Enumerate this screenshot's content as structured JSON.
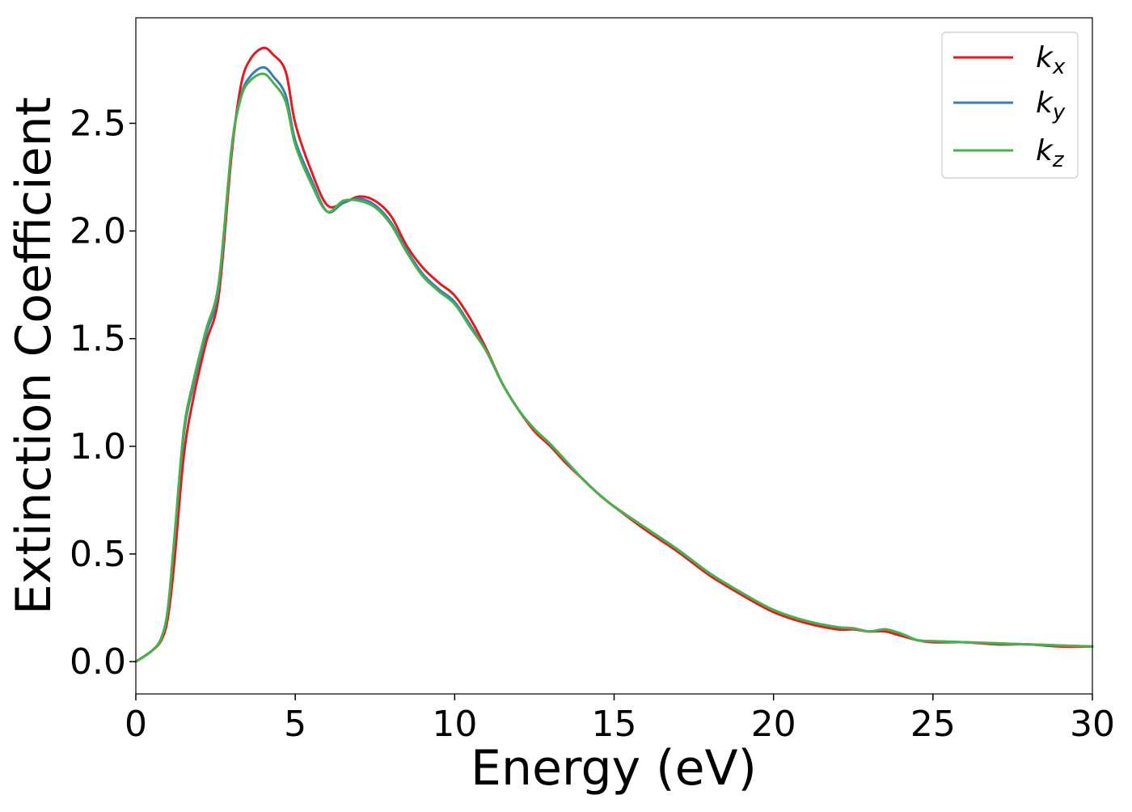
{
  "chart_data": {
    "type": "line",
    "title": "",
    "xlabel": "Energy (eV)",
    "ylabel": "Extinction Coefficient",
    "xlim": [
      0,
      30
    ],
    "ylim": [
      -0.15,
      2.99
    ],
    "xticks": [
      0,
      5,
      10,
      15,
      20,
      25,
      30
    ],
    "xtick_labels": [
      "0",
      "5",
      "10",
      "15",
      "20",
      "25",
      "30"
    ],
    "yticks": [
      0.0,
      0.5,
      1.0,
      1.5,
      2.0,
      2.5
    ],
    "ytick_labels": [
      "0.0",
      "0.5",
      "1.0",
      "1.5",
      "2.0",
      "2.5"
    ],
    "grid": false,
    "legend_position": "top-right",
    "series": [
      {
        "name": "k_x",
        "label_main": "k",
        "label_sub": "x",
        "color": "#e41a1c",
        "x": [
          0,
          0.5,
          0.8,
          1.0,
          1.2,
          1.5,
          1.8,
          2.2,
          2.6,
          3.0,
          3.3,
          3.6,
          4.0,
          4.3,
          4.7,
          5.0,
          5.5,
          6.0,
          6.5,
          7.0,
          7.5,
          8.0,
          8.5,
          9.0,
          9.5,
          10.0,
          10.5,
          11.0,
          11.5,
          12.0,
          12.5,
          13.0,
          13.5,
          14.0,
          14.5,
          15.0,
          16.0,
          17.0,
          18.0,
          19.0,
          20.0,
          21.0,
          22.0,
          22.5,
          23.0,
          23.5,
          24.0,
          24.5,
          25.0,
          26.0,
          27.0,
          28.0,
          29.0,
          30.0
        ],
        "y": [
          0.0,
          0.05,
          0.1,
          0.2,
          0.45,
          0.95,
          1.22,
          1.48,
          1.7,
          2.35,
          2.68,
          2.8,
          2.85,
          2.82,
          2.74,
          2.5,
          2.28,
          2.12,
          2.13,
          2.16,
          2.14,
          2.07,
          1.93,
          1.83,
          1.76,
          1.7,
          1.59,
          1.45,
          1.29,
          1.17,
          1.07,
          1.0,
          0.92,
          0.85,
          0.78,
          0.72,
          0.61,
          0.51,
          0.4,
          0.31,
          0.23,
          0.18,
          0.15,
          0.15,
          0.14,
          0.14,
          0.12,
          0.1,
          0.09,
          0.09,
          0.08,
          0.08,
          0.07,
          0.07
        ]
      },
      {
        "name": "k_y",
        "label_main": "k",
        "label_sub": "y",
        "color": "#377eb8",
        "x": [
          0,
          0.5,
          0.8,
          1.0,
          1.2,
          1.5,
          1.8,
          2.2,
          2.6,
          3.0,
          3.3,
          3.6,
          4.0,
          4.3,
          4.7,
          5.0,
          5.5,
          6.0,
          6.5,
          7.0,
          7.5,
          8.0,
          8.5,
          9.0,
          9.5,
          10.0,
          10.5,
          11.0,
          11.5,
          12.0,
          12.5,
          13.0,
          13.5,
          14.0,
          14.5,
          15.0,
          16.0,
          17.0,
          18.0,
          19.0,
          20.0,
          21.0,
          22.0,
          22.5,
          23.0,
          23.5,
          24.0,
          24.5,
          25.0,
          26.0,
          27.0,
          28.0,
          29.0,
          30.0
        ],
        "y": [
          0.0,
          0.05,
          0.11,
          0.24,
          0.55,
          1.05,
          1.28,
          1.52,
          1.74,
          2.38,
          2.63,
          2.72,
          2.76,
          2.72,
          2.63,
          2.42,
          2.24,
          2.09,
          2.13,
          2.15,
          2.12,
          2.04,
          1.91,
          1.8,
          1.73,
          1.67,
          1.56,
          1.44,
          1.29,
          1.17,
          1.08,
          1.01,
          0.93,
          0.85,
          0.78,
          0.72,
          0.62,
          0.52,
          0.41,
          0.32,
          0.24,
          0.19,
          0.16,
          0.155,
          0.14,
          0.15,
          0.13,
          0.1,
          0.095,
          0.09,
          0.085,
          0.08,
          0.075,
          0.07
        ]
      },
      {
        "name": "k_z",
        "label_main": "k",
        "label_sub": "z",
        "color": "#4daf4a",
        "x": [
          0,
          0.5,
          0.8,
          1.0,
          1.2,
          1.5,
          1.8,
          2.2,
          2.6,
          3.0,
          3.3,
          3.6,
          4.0,
          4.3,
          4.7,
          5.0,
          5.5,
          6.0,
          6.5,
          7.0,
          7.5,
          8.0,
          8.5,
          9.0,
          9.5,
          10.0,
          10.5,
          11.0,
          11.5,
          12.0,
          12.5,
          13.0,
          13.5,
          14.0,
          14.5,
          15.0,
          16.0,
          17.0,
          18.0,
          19.0,
          20.0,
          21.0,
          22.0,
          22.5,
          23.0,
          23.5,
          24.0,
          24.5,
          25.0,
          26.0,
          27.0,
          28.0,
          29.0,
          30.0
        ],
        "y": [
          0.0,
          0.05,
          0.11,
          0.24,
          0.56,
          1.07,
          1.3,
          1.54,
          1.76,
          2.38,
          2.62,
          2.7,
          2.73,
          2.69,
          2.6,
          2.4,
          2.22,
          2.09,
          2.14,
          2.14,
          2.11,
          2.03,
          1.9,
          1.79,
          1.72,
          1.66,
          1.55,
          1.44,
          1.29,
          1.17,
          1.08,
          1.01,
          0.93,
          0.85,
          0.78,
          0.72,
          0.62,
          0.52,
          0.41,
          0.32,
          0.24,
          0.19,
          0.16,
          0.155,
          0.14,
          0.15,
          0.13,
          0.1,
          0.095,
          0.09,
          0.085,
          0.08,
          0.075,
          0.07
        ]
      }
    ]
  }
}
